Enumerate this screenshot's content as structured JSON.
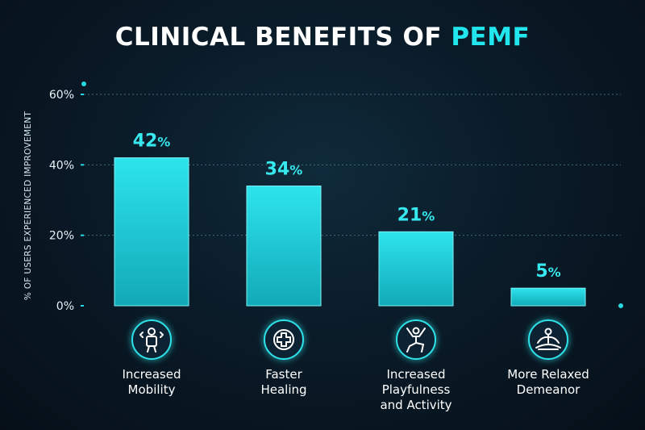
{
  "title_main": "CLINICAL BENEFITS OF",
  "title_accent": "PEMF",
  "chart_data": {
    "type": "bar",
    "title": "CLINICAL BENEFITS OF PEMF",
    "ylabel": "% OF USERS EXPERIENCED IMPROVEMENT",
    "xlabel": "",
    "ylim": [
      0,
      60
    ],
    "yticks": [
      "0%",
      "20%",
      "40%",
      "60%"
    ],
    "categories": [
      "Increased\nMobility",
      "Faster\nHealing",
      "Increased\nPlayfulness\nand Activity",
      "More Relaxed\nDemeanor"
    ],
    "values": [
      42,
      34,
      21,
      5
    ],
    "data_labels": [
      "42%",
      "34%",
      "21%",
      "5%"
    ],
    "icons": [
      "mobility-icon",
      "medical-cross-icon",
      "jumping-figure-icon",
      "meditation-icon"
    ],
    "grid": true,
    "bar_color": "#1ecfd8",
    "accent": "#22e6ee"
  }
}
